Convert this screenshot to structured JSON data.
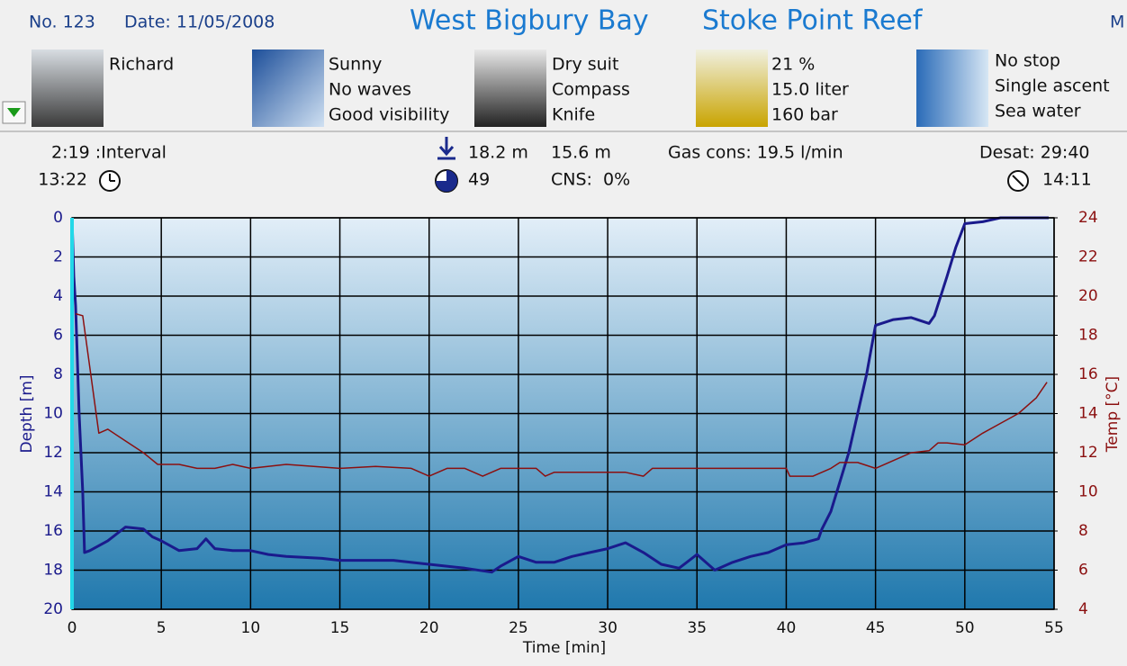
{
  "header": {
    "number": "No. 123",
    "date": "Date: 11/05/2008",
    "site": "West Bigbury Bay",
    "spot": "Stoke Point Reef",
    "cut": "M"
  },
  "panels": [
    {
      "lines": [
        "Richard"
      ]
    },
    {
      "lines": [
        "Sunny",
        "No waves",
        "Good visibility"
      ]
    },
    {
      "lines": [
        "Dry suit",
        "Compass",
        "Knife"
      ]
    },
    {
      "lines": [
        "21 %",
        "15.0 liter",
        "160 bar"
      ]
    },
    {
      "lines": [
        "No stop",
        "Single ascent",
        "Sea water"
      ]
    }
  ],
  "stats": {
    "interval": "2:19 :Interval",
    "entry": "13:22",
    "max_depth": "18.2 m",
    "avg_depth": "15.6 m",
    "gas": "Gas cons: 19.5 l/min",
    "desat": "Desat: 29:40",
    "duration": "49",
    "cns": "CNS:  0%",
    "exit": "14:11"
  },
  "chart_data": {
    "type": "line",
    "x_label": "Time [min]",
    "y_label": "Depth [m]",
    "y2_label": "Temp [°C]",
    "xlim": [
      0,
      55
    ],
    "xticks": [
      0,
      5,
      10,
      15,
      20,
      25,
      30,
      35,
      40,
      45,
      50,
      55
    ],
    "ylim": [
      20,
      0
    ],
    "yticks": [
      0,
      2,
      4,
      6,
      8,
      10,
      12,
      14,
      16,
      18,
      20
    ],
    "y2lim": [
      4,
      24
    ],
    "y2ticks": [
      4,
      6,
      8,
      10,
      12,
      14,
      16,
      18,
      20,
      22,
      24
    ],
    "grid": true,
    "series": [
      {
        "name": "Depth",
        "color": "#1a1a8c",
        "x": [
          0,
          0.1,
          0.2,
          0.4,
          0.6,
          0.7,
          1,
          2,
          3,
          4,
          4.5,
          5,
          6,
          7,
          7.5,
          8,
          9,
          10,
          11,
          12,
          14,
          15,
          16,
          18,
          20,
          22,
          23.5,
          24,
          25,
          26,
          27,
          28,
          29,
          30,
          31,
          32,
          33,
          34,
          35,
          36,
          37,
          38,
          39,
          40,
          41,
          41.8,
          42,
          42.5,
          43,
          43.5,
          44,
          44.5,
          45,
          46,
          47,
          48,
          48.3,
          49,
          49.5,
          50,
          51,
          52,
          54.7
        ],
        "values": [
          0,
          3,
          4.5,
          10,
          14,
          17.1,
          17,
          16.5,
          15.8,
          15.9,
          16.3,
          16.5,
          17,
          16.9,
          16.4,
          16.9,
          17,
          17,
          17.2,
          17.3,
          17.4,
          17.5,
          17.5,
          17.5,
          17.7,
          17.9,
          18.1,
          17.8,
          17.3,
          17.6,
          17.6,
          17.3,
          17.1,
          16.9,
          16.6,
          17.1,
          17.7,
          17.9,
          17.2,
          18,
          17.6,
          17.3,
          17.1,
          16.7,
          16.6,
          16.4,
          15.9,
          15,
          13.5,
          12,
          10,
          8,
          5.5,
          5.2,
          5.1,
          5.4,
          5,
          3,
          1.5,
          0.3,
          0.2,
          0,
          0
        ]
      },
      {
        "name": "Temp",
        "color": "#8b1010",
        "axis": "y2",
        "x": [
          0.2,
          0.6,
          1.5,
          2,
          3,
          4,
          4.8,
          6,
          7,
          8,
          9,
          10,
          12,
          15,
          17,
          19,
          20,
          21,
          22,
          23,
          24,
          26,
          26.5,
          27,
          31,
          32,
          32.5,
          40,
          40.2,
          41.5,
          42.5,
          43,
          44,
          45,
          46,
          47,
          48,
          48.5,
          49,
          50,
          51,
          52,
          53,
          54,
          54.6
        ],
        "values": [
          19.1,
          19,
          13,
          13.2,
          12.6,
          12,
          11.4,
          11.4,
          11.2,
          11.2,
          11.4,
          11.2,
          11.4,
          11.2,
          11.3,
          11.2,
          10.8,
          11.2,
          11.2,
          10.8,
          11.2,
          11.2,
          10.8,
          11,
          11,
          10.8,
          11.2,
          11.2,
          10.8,
          10.8,
          11.2,
          11.5,
          11.5,
          11.2,
          11.6,
          12,
          12.1,
          12.5,
          12.5,
          12.4,
          13,
          13.5,
          14,
          14.8,
          15.6
        ]
      }
    ]
  }
}
